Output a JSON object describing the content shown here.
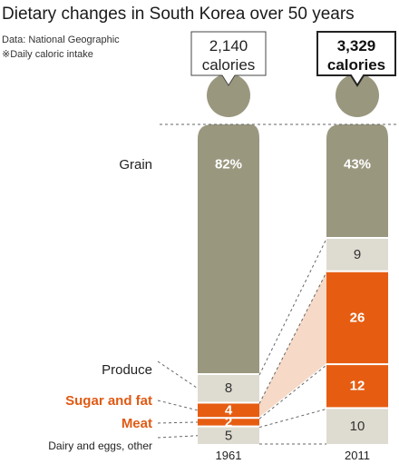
{
  "title": "Dietary changes in South Korea over 50 years",
  "source": "Data: National Geographic",
  "note": "※Daily caloric intake",
  "colors": {
    "grain": "#9a977f",
    "produce": "#dedbd0",
    "sugar_fat": "#e65d12",
    "meat": "#e65d12",
    "dairy": "#dedbd0",
    "connector": "#f6d9c6"
  },
  "chart_data": {
    "type": "bar",
    "stacked": true,
    "categories": [
      "1961",
      "2011"
    ],
    "totals": [
      {
        "year": "1961",
        "value": 2140,
        "label_number": "2,140",
        "label_unit": "calories"
      },
      {
        "year": "2011",
        "value": 3329,
        "label_number": "3,329",
        "label_unit": "calories"
      }
    ],
    "series": [
      {
        "name": "Grain",
        "values": [
          82,
          43
        ],
        "labels": [
          "82%",
          "43%"
        ]
      },
      {
        "name": "Produce",
        "values": [
          8,
          9
        ],
        "labels": [
          "8",
          "9"
        ]
      },
      {
        "name": "Sugar and fat",
        "values": [
          4,
          26
        ],
        "labels": [
          "4",
          "26"
        ]
      },
      {
        "name": "Meat",
        "values": [
          2,
          12
        ],
        "labels": [
          "2",
          "12"
        ]
      },
      {
        "name": "Dairy and eggs, other",
        "values": [
          5,
          10
        ],
        "labels": [
          "5",
          "10"
        ]
      }
    ]
  }
}
